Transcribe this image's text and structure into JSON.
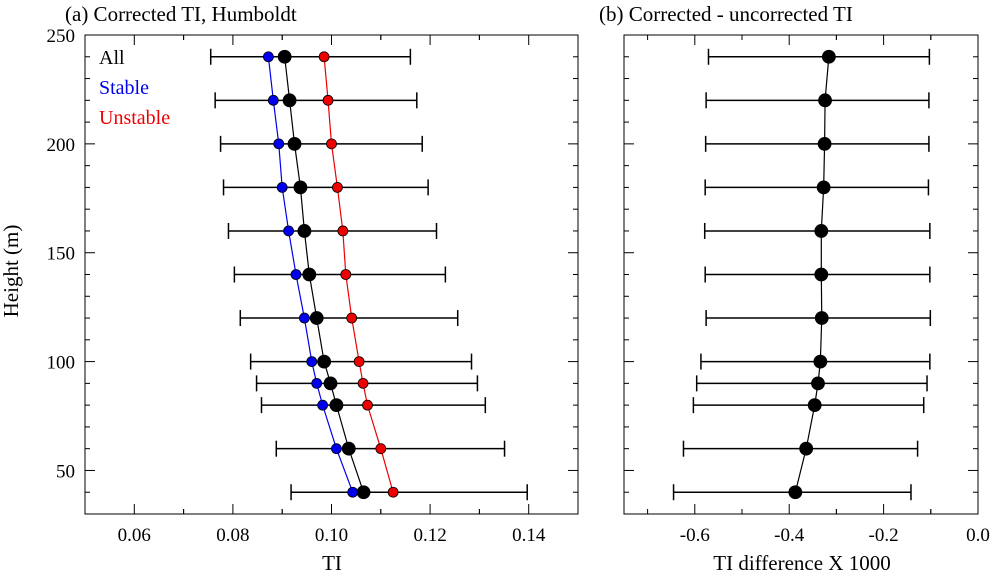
{
  "chart_data": [
    {
      "type": "scatter",
      "title": "(a) Corrected TI, Humboldt",
      "xlabel": "TI",
      "ylabel": "Height (m)",
      "xlim": [
        0.05,
        0.15
      ],
      "ylim": [
        30,
        250
      ],
      "xticks": [
        "0.06",
        "0.08",
        "0.10",
        "0.12",
        "0.14"
      ],
      "yticks": [
        "50",
        "100",
        "150",
        "200",
        "250"
      ],
      "legend_position": "top-left",
      "series": [
        {
          "name": "All",
          "color": "#000000",
          "heights": [
            40,
            60,
            80,
            90,
            100,
            120,
            140,
            160,
            180,
            200,
            220,
            240
          ],
          "values": [
            0.1065,
            0.1035,
            0.101,
            0.0998,
            0.0985,
            0.097,
            0.0955,
            0.0945,
            0.0937,
            0.0925,
            0.0915,
            0.0905
          ],
          "error_low": [
            0.0918,
            0.0888,
            0.0858,
            0.0848,
            0.0836,
            0.0815,
            0.0803,
            0.0791,
            0.0781,
            0.0775,
            0.0764,
            0.0755
          ],
          "error_high": [
            0.1397,
            0.1351,
            0.1312,
            0.1296,
            0.1284,
            0.1256,
            0.1231,
            0.1213,
            0.1196,
            0.1184,
            0.1173,
            0.116
          ]
        },
        {
          "name": "Stable",
          "color": "#0000ee",
          "heights": [
            40,
            60,
            80,
            90,
            100,
            120,
            140,
            160,
            180,
            200,
            220,
            240
          ],
          "values": [
            0.1043,
            0.101,
            0.0982,
            0.097,
            0.096,
            0.0945,
            0.0928,
            0.0913,
            0.09,
            0.0893,
            0.0882,
            0.0872
          ]
        },
        {
          "name": "Unstable",
          "color": "#ee0000",
          "heights": [
            40,
            60,
            80,
            90,
            100,
            120,
            140,
            160,
            180,
            200,
            220,
            240
          ],
          "values": [
            0.1125,
            0.11,
            0.1073,
            0.1064,
            0.1056,
            0.1041,
            0.1029,
            0.1023,
            0.1012,
            0.1,
            0.0993,
            0.0985
          ]
        }
      ]
    },
    {
      "type": "scatter",
      "title": "(b) Corrected - uncorrected TI",
      "xlabel": "TI difference X 1000",
      "ylabel": "",
      "xlim": [
        -0.75,
        0.0
      ],
      "ylim": [
        30,
        250
      ],
      "xticks": [
        "-0.6",
        "-0.4",
        "-0.2",
        "0.0"
      ],
      "series": [
        {
          "name": "",
          "color": "#000000",
          "heights": [
            40,
            60,
            80,
            90,
            100,
            120,
            140,
            160,
            180,
            200,
            220,
            240
          ],
          "values": [
            -0.387,
            -0.364,
            -0.346,
            -0.339,
            -0.334,
            -0.331,
            -0.332,
            -0.332,
            -0.327,
            -0.325,
            -0.324,
            -0.316
          ],
          "error_low": [
            -0.645,
            -0.624,
            -0.603,
            -0.596,
            -0.587,
            -0.576,
            -0.578,
            -0.579,
            -0.578,
            -0.577,
            -0.576,
            -0.571
          ],
          "error_high": [
            -0.142,
            -0.128,
            -0.115,
            -0.108,
            -0.102,
            -0.101,
            -0.102,
            -0.102,
            -0.105,
            -0.104,
            -0.104,
            -0.103
          ]
        }
      ]
    }
  ]
}
